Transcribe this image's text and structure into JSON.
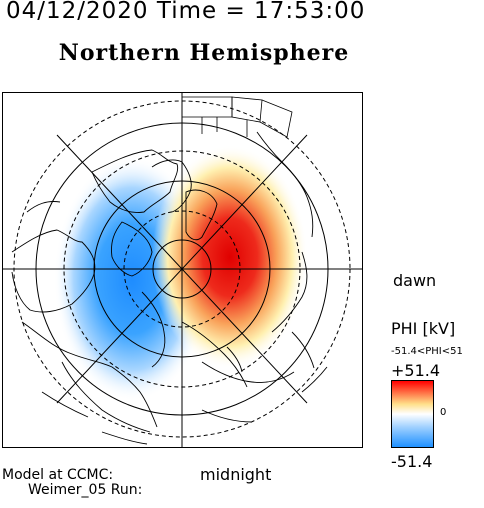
{
  "timestamp": "04/12/2020 Time = 17:53:00",
  "title": "Northern Hemisphere",
  "labels": {
    "dawn": "dawn",
    "midnight": "midnight"
  },
  "legend": {
    "title": "PHI [kV]",
    "range": "-51.4<PHI<51",
    "max": "+51.4",
    "zero": "0",
    "min": "-51.4",
    "colors": [
      "#1e90ff",
      "#ffffff",
      "#ff0000"
    ]
  },
  "model": {
    "line1": "Model at CCMC:",
    "line2": "Weimer_05 Run:"
  },
  "potential_cells": {
    "negative": {
      "peak_kv": -51.4,
      "color": "#1e90ff"
    },
    "positive": {
      "peak_kv": 51.4,
      "color": "#e60000"
    }
  }
}
